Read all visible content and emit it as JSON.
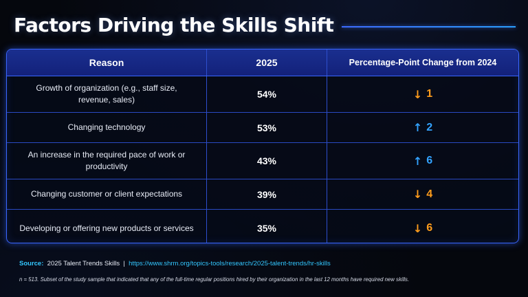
{
  "title": "Factors Driving the Skills Shift",
  "colors": {
    "accent_border": "#3b66ff",
    "header_fill": "#13217a",
    "down_arrow": "#ff9d1c",
    "up_arrow": "#33a3ff",
    "source_link": "#33c7ff"
  },
  "chart_data": {
    "type": "table",
    "title": "Factors Driving the Skills Shift",
    "columns": [
      "Reason",
      "2025",
      "Percentage-Point Change from 2024"
    ],
    "rows": [
      {
        "reason": "Growth of organization (e.g., staff size, revenue, sales)",
        "value": "54%",
        "value_num": 54,
        "direction": "down",
        "arrow": "↓",
        "change": "1",
        "change_num": -1
      },
      {
        "reason": "Changing technology",
        "value": "53%",
        "value_num": 53,
        "direction": "up",
        "arrow": "↑",
        "change": "2",
        "change_num": 2
      },
      {
        "reason": "An increase in the required pace of work or productivity",
        "value": "43%",
        "value_num": 43,
        "direction": "up",
        "arrow": "↑",
        "change": "6",
        "change_num": 6
      },
      {
        "reason": "Changing customer or client expectations",
        "value": "39%",
        "value_num": 39,
        "direction": "down",
        "arrow": "↓",
        "change": "4",
        "change_num": -4
      },
      {
        "reason": "Developing or offering new products or services",
        "value": "35%",
        "value_num": 35,
        "direction": "down",
        "arrow": "↓",
        "change": "6",
        "change_num": -6
      }
    ]
  },
  "source": {
    "label": "Source:",
    "text": "2025 Talent Trends Skills",
    "separator": "|",
    "url": "https://www.shrm.org/topics-tools/research/2025-talent-trends/hr-skills"
  },
  "footnote": "n = 513. Subset of the study sample that indicated that any of the full-time regular positions hired by their organization in the last 12 months have required new skills."
}
